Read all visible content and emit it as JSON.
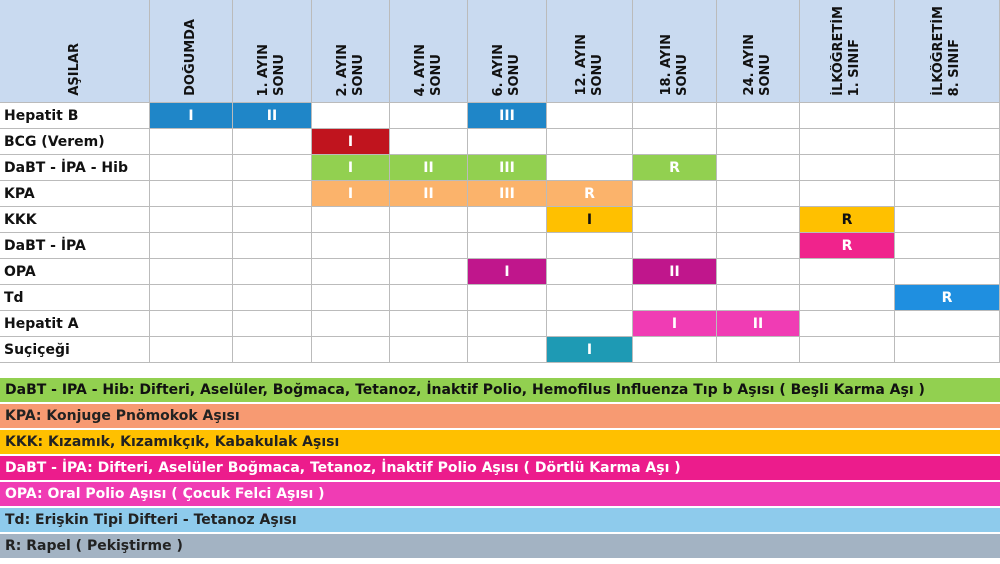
{
  "header": {
    "first": "AŞILAR",
    "columns": [
      [
        "DOĞUMDA"
      ],
      [
        "1. AYIN",
        "SONU"
      ],
      [
        "2. AYIN",
        "SONU"
      ],
      [
        "4. AYIN",
        "SONU"
      ],
      [
        "6. AYIN",
        "SONU"
      ],
      [
        "12. AYIN",
        "SONU"
      ],
      [
        "18. AYIN",
        "SONU"
      ],
      [
        "24. AYIN",
        "SONU"
      ],
      [
        "İLKÖĞRETİM",
        "1. SINIF"
      ],
      [
        "İLKÖĞRETİM",
        "8. SINIF"
      ]
    ]
  },
  "rows": [
    {
      "name": "Hepatit B",
      "color": "#1f86c8",
      "text_color": "#ffffff",
      "cells": [
        "I",
        "II",
        null,
        null,
        "III",
        null,
        null,
        null,
        null,
        null
      ]
    },
    {
      "name": "BCG (Verem)",
      "color": "#c0141e",
      "text_color": "#ffffff",
      "cells": [
        null,
        null,
        "I",
        null,
        null,
        null,
        null,
        null,
        null,
        null
      ]
    },
    {
      "name": "DaBT - İPA - Hib",
      "color": "#92d050",
      "text_color": "#ffffff",
      "cells": [
        null,
        null,
        "I",
        "II",
        "III",
        null,
        "R",
        null,
        null,
        null
      ]
    },
    {
      "name": "KPA",
      "color": "#fbb36b",
      "text_color": "#ffffff",
      "cells": [
        null,
        null,
        "I",
        "II",
        "III",
        "R",
        null,
        null,
        null,
        null
      ]
    },
    {
      "name": "KKK",
      "color": "#ffc000",
      "text_color": "#111111",
      "cells": [
        null,
        null,
        null,
        null,
        null,
        "I",
        null,
        null,
        "R",
        null
      ]
    },
    {
      "name": "DaBT - İPA",
      "color": "#f0238c",
      "text_color": "#ffffff",
      "cells": [
        null,
        null,
        null,
        null,
        null,
        null,
        null,
        null,
        "R",
        null
      ]
    },
    {
      "name": "OPA",
      "color": "#c0168c",
      "text_color": "#ffffff",
      "cells": [
        null,
        null,
        null,
        null,
        "I",
        null,
        "II",
        null,
        null,
        null
      ]
    },
    {
      "name": "Td",
      "color": "#1f8fe0",
      "text_color": "#ffffff",
      "cells": [
        null,
        null,
        null,
        null,
        null,
        null,
        null,
        null,
        null,
        "R"
      ]
    },
    {
      "name": "Hepatit A",
      "color": "#f03cb4",
      "text_color": "#ffffff",
      "cells": [
        null,
        null,
        null,
        null,
        null,
        null,
        "I",
        "II",
        null,
        null
      ]
    },
    {
      "name": "Suçiçeği",
      "color": "#1e9ab4",
      "text_color": "#ffffff",
      "cells": [
        null,
        null,
        null,
        null,
        null,
        "I",
        null,
        null,
        null,
        null
      ]
    }
  ],
  "legend": [
    {
      "text": "DaBT - IPA - Hib: Difteri, Aselüler, Boğmaca, Tetanoz, İnaktif Polio, Hemofilus Influenza Tıp b Aşısı ( Beşli Karma Aşı )",
      "color": "#92d050",
      "text_color": "#111111"
    },
    {
      "text": "KPA: Konjuge Pnömokok Aşısı",
      "color": "#f79a72",
      "text_color": "#222222"
    },
    {
      "text": "KKK: Kızamık, Kızamıkçık, Kabakulak Aşısı",
      "color": "#ffc000",
      "text_color": "#222222"
    },
    {
      "text": "DaBT - İPA: Difteri, Aselüler Boğmaca, Tetanoz, İnaktif Polio Aşısı ( Dörtlü Karma Aşı )",
      "color": "#ec1c8c",
      "text_color": "#ffffff"
    },
    {
      "text": "OPA: Oral Polio Aşısı ( Çocuk Felci Aşısı )",
      "color": "#f03cb4",
      "text_color": "#ffffff"
    },
    {
      "text": "Td: Erişkin Tipi Difteri - Tetanoz Aşısı",
      "color": "#8ecbec",
      "text_color": "#222222"
    },
    {
      "text": "R: Rapel ( Pekiştirme )",
      "color": "#a3b3c3",
      "text_color": "#222222"
    }
  ]
}
